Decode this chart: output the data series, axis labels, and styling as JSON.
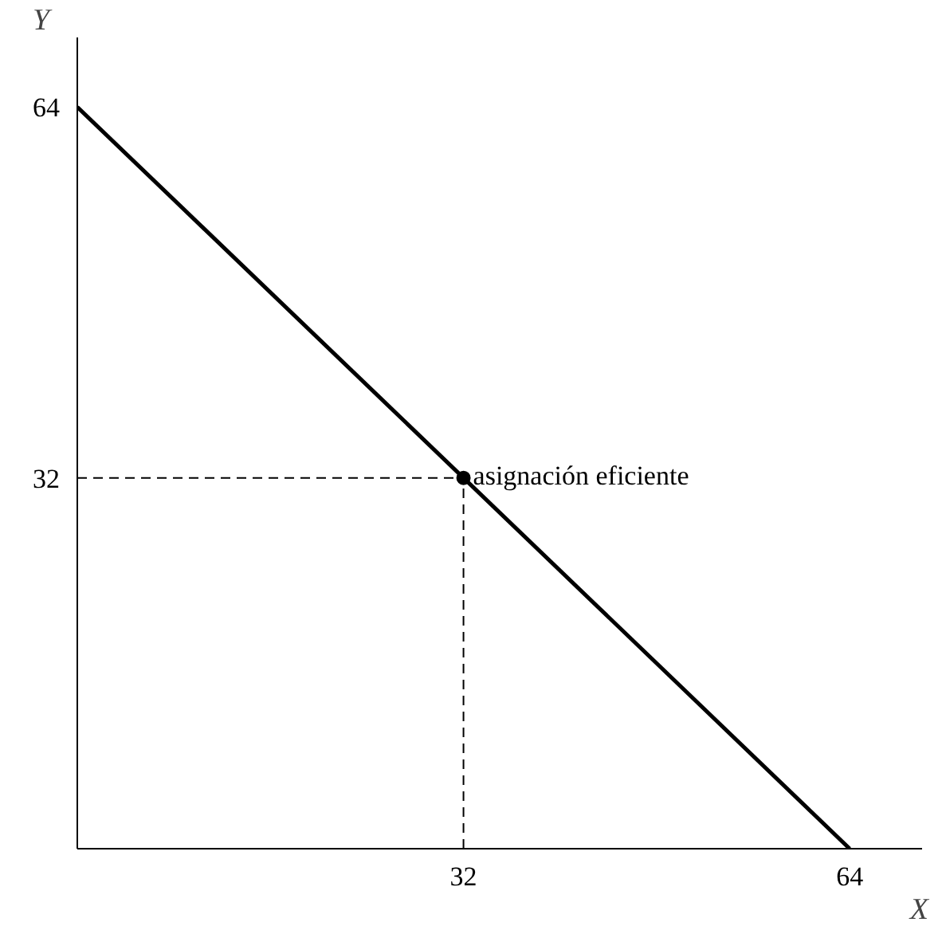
{
  "chart_data": {
    "type": "line",
    "xlabel": "X",
    "ylabel": "Y",
    "xlim": [
      0,
      70
    ],
    "ylim": [
      0,
      70
    ],
    "xticks": [
      32,
      64
    ],
    "yticks": [
      32,
      64
    ],
    "grid": false,
    "series": [
      {
        "type": "line",
        "color": "#000000",
        "x": [
          0,
          64
        ],
        "values": [
          64,
          0
        ],
        "line_style": "solid"
      },
      {
        "type": "line",
        "color": "#000000",
        "x": [
          0,
          32
        ],
        "values": [
          32,
          32
        ],
        "line_style": "dashed"
      },
      {
        "type": "line",
        "color": "#000000",
        "x": [
          32,
          32
        ],
        "values": [
          0,
          32
        ],
        "line_style": "dashed"
      },
      {
        "type": "scatter",
        "color": "#000000",
        "x": [
          32
        ],
        "values": [
          32
        ],
        "marker": "circle"
      }
    ],
    "annotations": [
      {
        "text": "asignación eficiente",
        "x": 32,
        "y": 32
      }
    ]
  }
}
